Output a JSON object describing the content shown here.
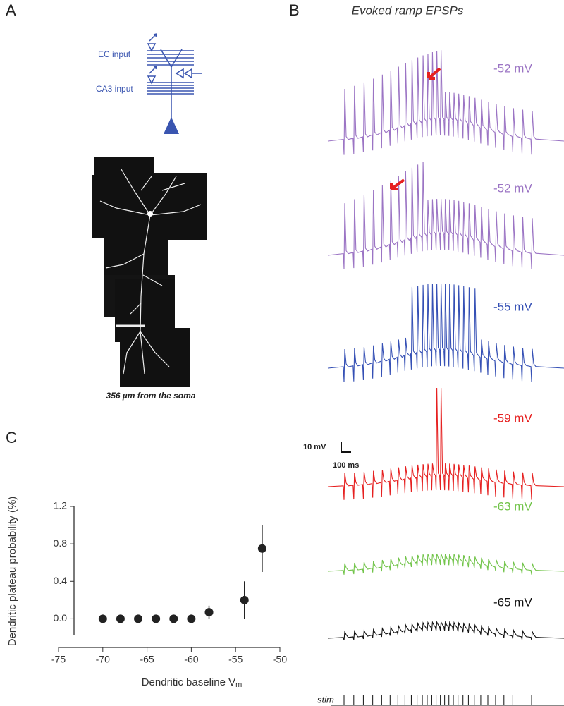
{
  "panels": {
    "a": "A",
    "b": "B",
    "c": "C"
  },
  "panel_a": {
    "ec_label": "EC input",
    "ca3_label": "CA3 input",
    "caption": "356 µm from the soma"
  },
  "panel_b": {
    "title": "Evoked ramp EPSPs",
    "traces": [
      {
        "label": "-52 mV",
        "color": "#9b74c4"
      },
      {
        "label": "-52 mV",
        "color": "#9b74c4"
      },
      {
        "label": "-55 mV",
        "color": "#3550b5"
      },
      {
        "label": "-59 mV",
        "color": "#e62020"
      },
      {
        "label": "-63 mV",
        "color": "#72c44a"
      },
      {
        "label": "-65 mV",
        "color": "#111111"
      }
    ],
    "scale_voltage": "10 mV",
    "scale_time": "100 ms",
    "stim_label": "stim"
  },
  "chart_data": {
    "type": "scatter",
    "x_label": "Dendritic baseline V",
    "x_label_subscript": "m",
    "y_label": "Dendritic plateau probability (%)",
    "x": [
      -70,
      -68,
      -66,
      -64,
      -62,
      -60,
      -58,
      -54,
      -52
    ],
    "series": [
      {
        "color": "#222222",
        "values": [
          0,
          0,
          0,
          0,
          0,
          0,
          0.07,
          0.2,
          0.75
        ],
        "errors": [
          0,
          0,
          0,
          0,
          0,
          0,
          0.07,
          0.2,
          0.25
        ]
      }
    ],
    "xlim": [
      -75,
      -50
    ],
    "xticks": [
      -75,
      -70,
      -65,
      -60,
      -55,
      -50
    ],
    "ylim": [
      -0.17,
      1.2
    ],
    "yticks": [
      {
        "value": 0,
        "label": "0.0"
      },
      0.4,
      0.8,
      1.2
    ]
  }
}
